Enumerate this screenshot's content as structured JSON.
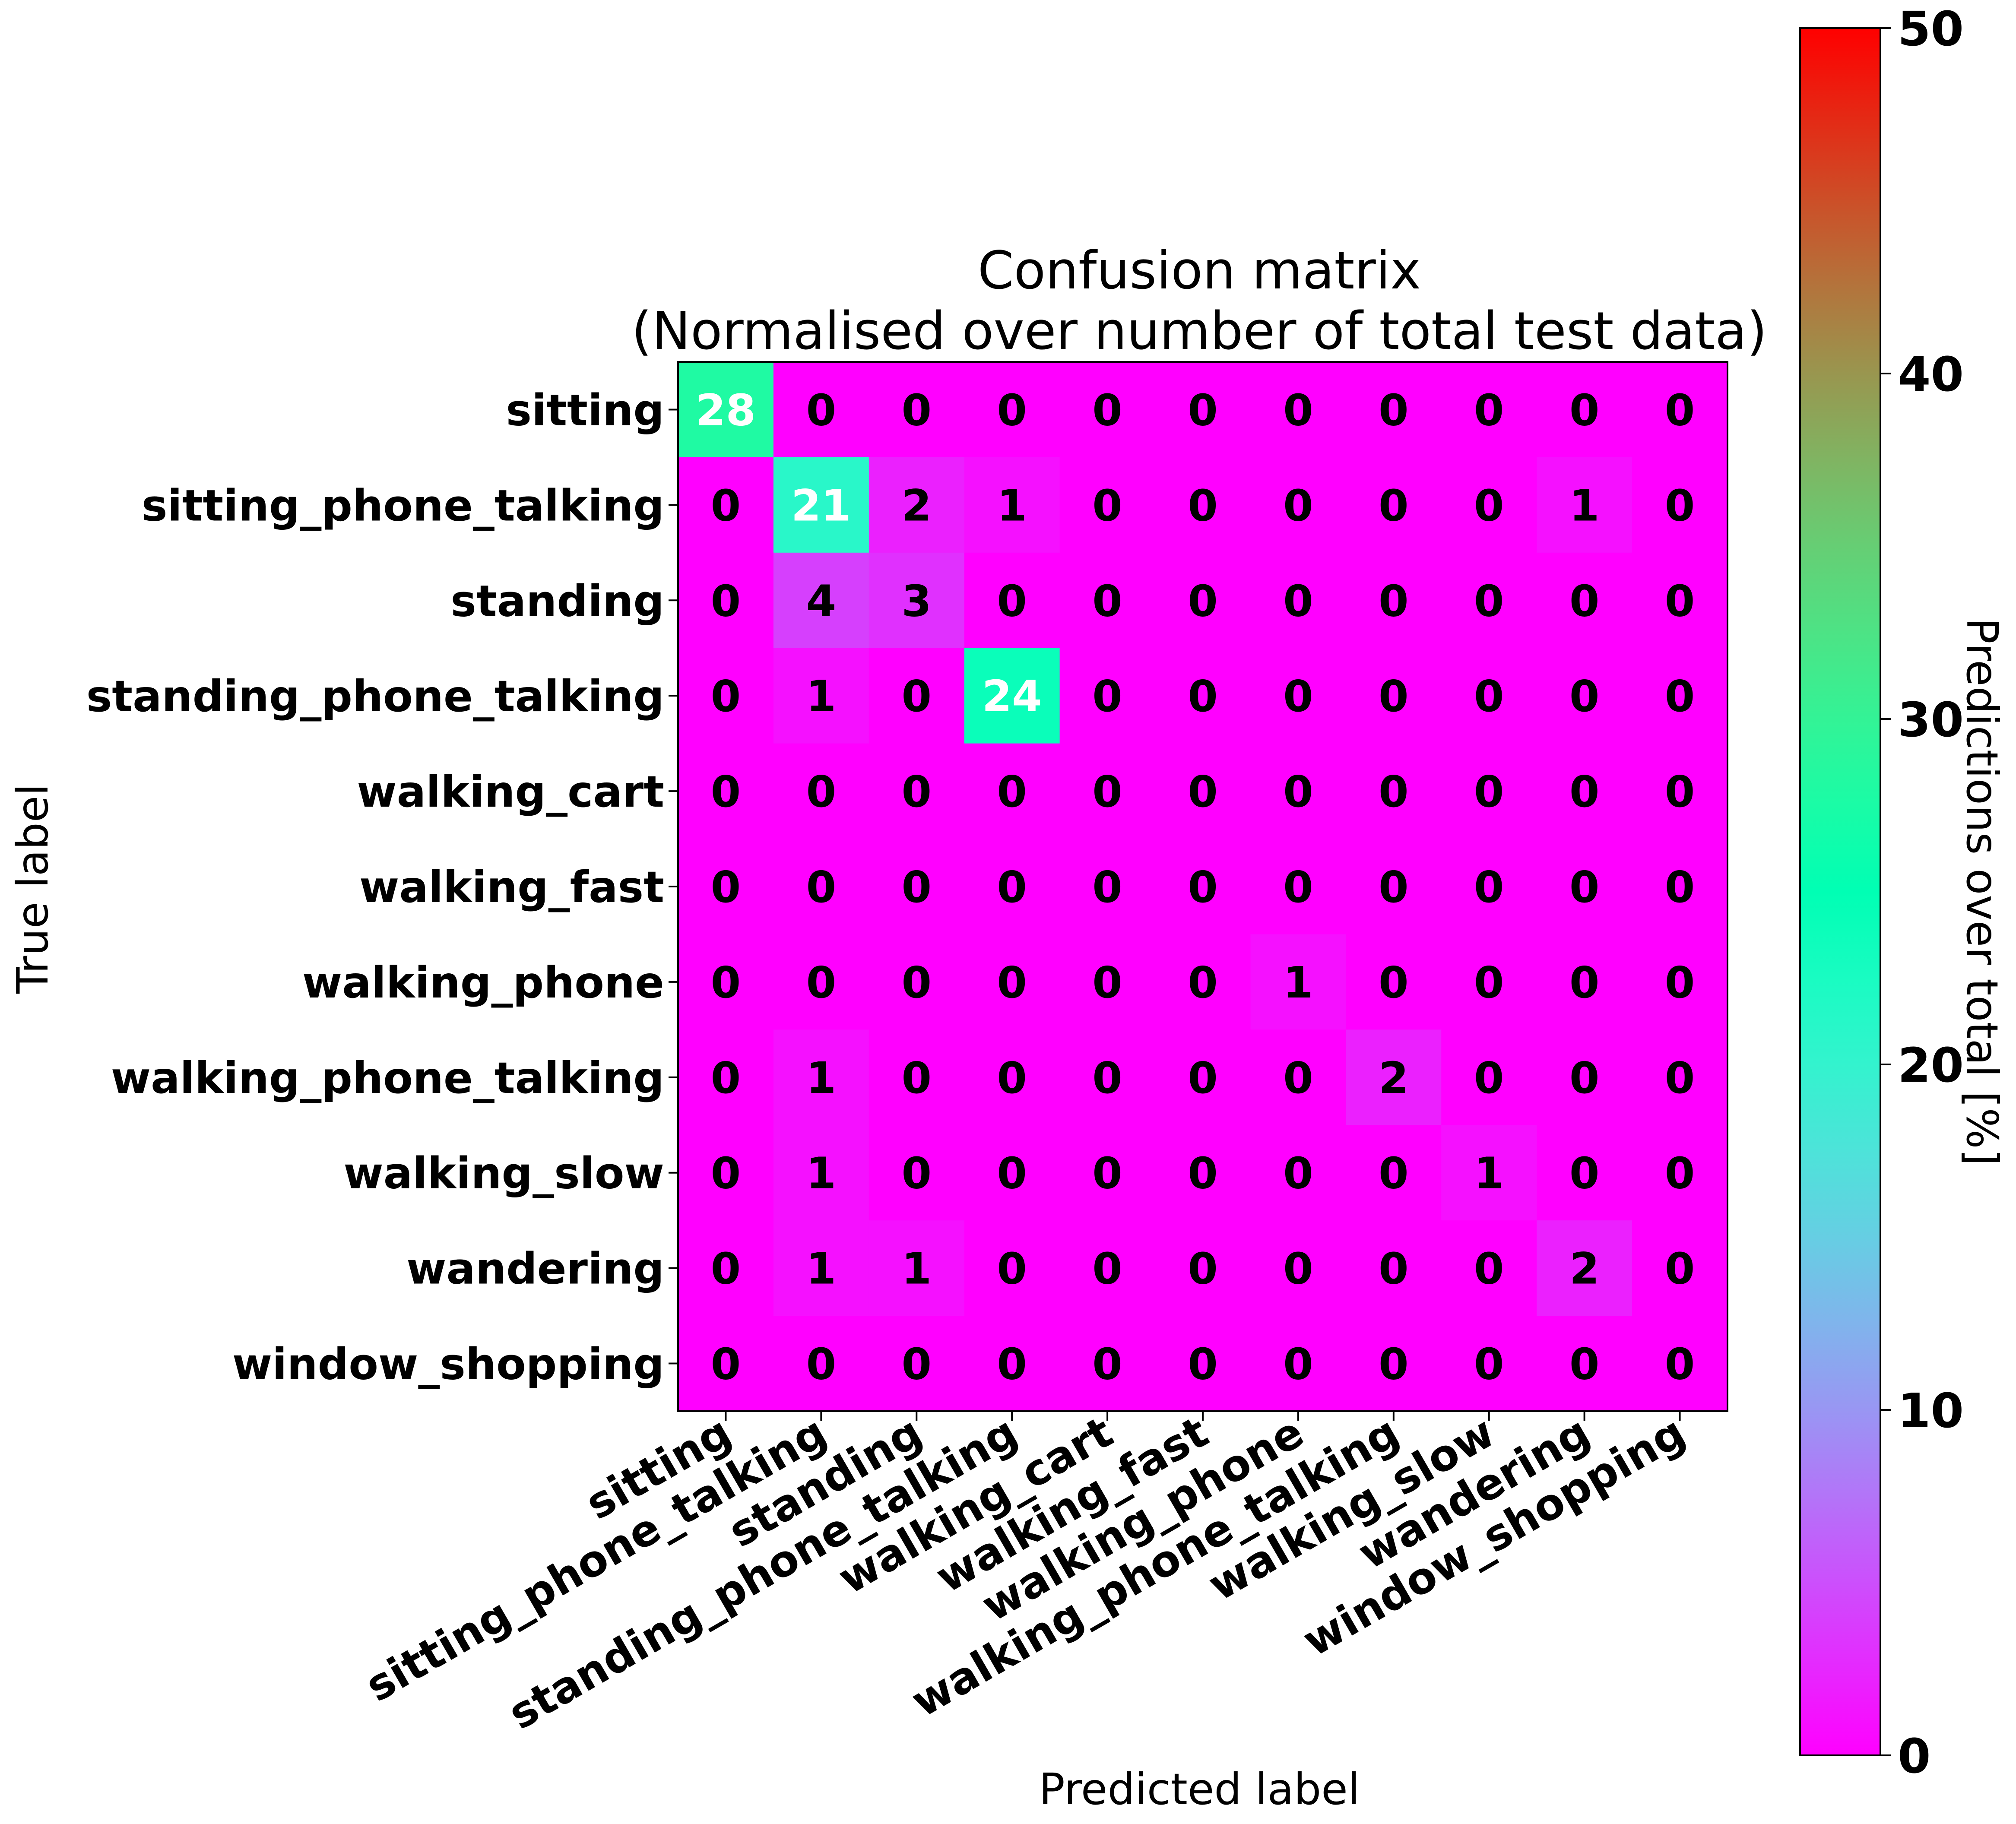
{
  "chart_data": {
    "type": "heatmap",
    "title": "Confusion matrix",
    "subtitle": "(Normalised over number of total test data)",
    "xlabel": "Predicted label",
    "ylabel": "True label",
    "colorbar_label": "Predictions over total [%]",
    "colorbar_ticks": [
      "0",
      "10",
      "20",
      "30",
      "40",
      "50"
    ],
    "colorbar_range": [
      0,
      50
    ],
    "colormap": "rainbow",
    "categories": [
      "sitting",
      "sitting_phone_talking",
      "standing",
      "standing_phone_talking",
      "walking_cart",
      "walking_fast",
      "walking_phone",
      "walking_phone_talking",
      "walking_slow",
      "wandering",
      "window_shopping"
    ],
    "values": [
      [
        28,
        0,
        0,
        0,
        0,
        0,
        0,
        0,
        0,
        0,
        0
      ],
      [
        0,
        21,
        2,
        1,
        0,
        0,
        0,
        0,
        0,
        1,
        0
      ],
      [
        0,
        4,
        3,
        0,
        0,
        0,
        0,
        0,
        0,
        0,
        0
      ],
      [
        0,
        1,
        0,
        24,
        0,
        0,
        0,
        0,
        0,
        0,
        0
      ],
      [
        0,
        0,
        0,
        0,
        0,
        0,
        0,
        0,
        0,
        0,
        0
      ],
      [
        0,
        0,
        0,
        0,
        0,
        0,
        0,
        0,
        0,
        0,
        0
      ],
      [
        0,
        0,
        0,
        0,
        0,
        0,
        1,
        0,
        0,
        0,
        0
      ],
      [
        0,
        1,
        0,
        0,
        0,
        0,
        0,
        2,
        0,
        0,
        0
      ],
      [
        0,
        1,
        0,
        0,
        0,
        0,
        0,
        0,
        1,
        0,
        0
      ],
      [
        0,
        1,
        1,
        0,
        0,
        0,
        0,
        0,
        0,
        2,
        0
      ],
      [
        0,
        0,
        0,
        0,
        0,
        0,
        0,
        0,
        0,
        0,
        0
      ]
    ]
  }
}
